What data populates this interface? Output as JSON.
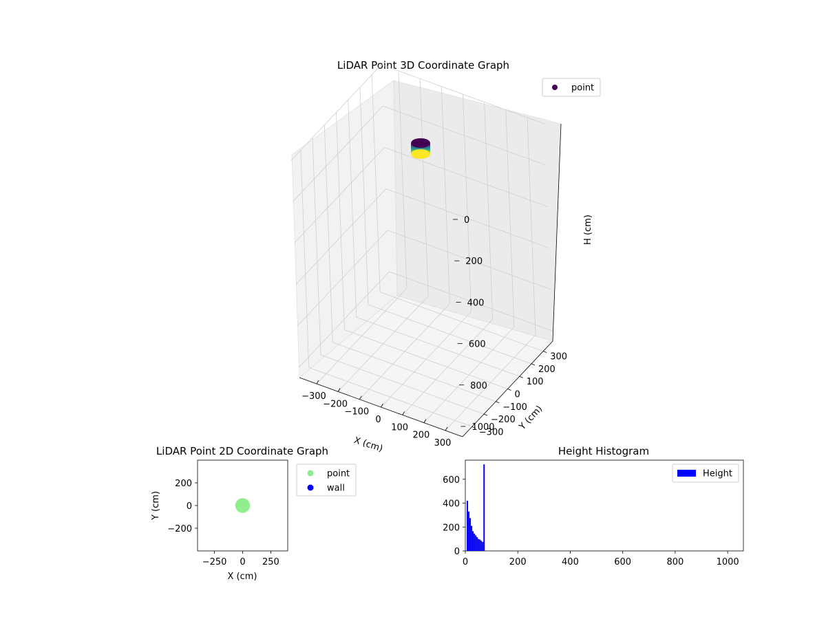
{
  "chart_data": [
    {
      "type": "scatter3d",
      "title": "LiDAR Point 3D Coordinate Graph",
      "xlabel": "X (cm)",
      "ylabel": "Y (cm)",
      "zlabel": "H (cm)",
      "xlim": [
        -380,
        380
      ],
      "ylim": [
        -380,
        380
      ],
      "zlim": [
        0,
        1050
      ],
      "z_inverted": true,
      "xticks": [
        -300,
        -200,
        -100,
        0,
        100,
        200,
        300
      ],
      "yticks": [
        -300,
        -200,
        -100,
        0,
        100,
        200,
        300
      ],
      "zticks": [
        0,
        200,
        400,
        600,
        800,
        1000
      ],
      "colormap": "viridis",
      "legend": {
        "position": "top-right",
        "entries": [
          "point"
        ]
      },
      "series": [
        {
          "name": "point",
          "shape": "cylinder",
          "center_x": 0,
          "center_y": 0,
          "radius": 35,
          "h_min": 5,
          "h_max": 75
        }
      ]
    },
    {
      "type": "scatter",
      "title": "LiDAR Point 2D Coordinate Graph",
      "xlabel": "X (cm)",
      "ylabel": "Y (cm)",
      "xlim": [
        -400,
        400
      ],
      "ylim": [
        -400,
        400
      ],
      "xticks": [
        -250,
        0,
        250
      ],
      "yticks": [
        -200,
        0,
        200
      ],
      "legend": {
        "position": "outside-right",
        "entries": [
          "point",
          "wall"
        ]
      },
      "series": [
        {
          "name": "point",
          "color": "#90ee90",
          "shape": "disc",
          "center": [
            0,
            0
          ],
          "radius": 35
        },
        {
          "name": "wall",
          "color": "#0000ff",
          "points": []
        }
      ]
    },
    {
      "type": "bar",
      "title": "Height Histogram",
      "xlim": [
        0,
        1060
      ],
      "ylim": [
        0,
        760
      ],
      "xticks": [
        0,
        200,
        400,
        600,
        800,
        1000
      ],
      "yticks": [
        0,
        200,
        400,
        600
      ],
      "legend": {
        "position": "top-right",
        "entries": [
          "Height"
        ]
      },
      "color": "#0000ff",
      "bin_width": 5.3,
      "series": [
        {
          "name": "Height",
          "bin_starts": [
            5.3,
            10.6,
            15.9,
            21.2,
            26.5,
            31.8,
            37.1,
            42.4,
            47.7,
            53.0,
            58.3,
            63.6,
            68.9
          ],
          "values": [
            420,
            330,
            275,
            210,
            165,
            145,
            130,
            115,
            100,
            95,
            85,
            75,
            725
          ]
        }
      ]
    }
  ]
}
